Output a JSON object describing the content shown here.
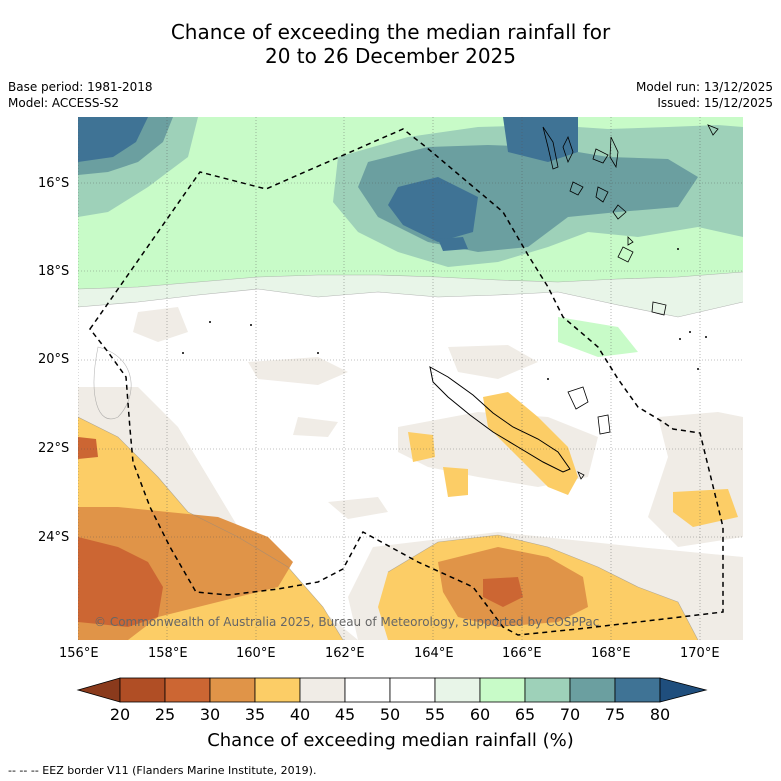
{
  "title": {
    "line1": "Chance of exceeding the median rainfall for",
    "line2": "20 to 26 December 2025"
  },
  "meta": {
    "base_period": "Base period: 1981-2018",
    "model": "Model: ACCESS-S2",
    "model_run": "Model run: 13/12/2025",
    "issued": "Issued: 15/12/2025"
  },
  "map": {
    "copyright": "© Commonwealth of Australia 2025, Bureau of Meteorology, supported by COSPPac",
    "lat_labels": [
      "16°S",
      "18°S",
      "20°S",
      "22°S",
      "24°S"
    ],
    "lon_labels": [
      "156°E",
      "158°E",
      "160°E",
      "162°E",
      "164°E",
      "166°E",
      "168°E",
      "170°E"
    ]
  },
  "colorbar": {
    "title": "Chance of exceeding median rainfall (%)",
    "ticks": [
      "20",
      "25",
      "30",
      "35",
      "40",
      "45",
      "50",
      "55",
      "60",
      "65",
      "70",
      "75",
      "80"
    ],
    "colors": [
      "#8a3a1c",
      "#b04e25",
      "#cc6633",
      "#e09448",
      "#fccd66",
      "#f0ece6",
      "#ffffff",
      "#ffffff",
      "#e8f5e8",
      "#c8fbc8",
      "#9ed1b9",
      "#6b9fa0",
      "#3f7395",
      "#1f4e7d"
    ]
  },
  "footnote": "--  --  -- EEZ border V11 (Flanders Marine Institute, 2019)."
}
